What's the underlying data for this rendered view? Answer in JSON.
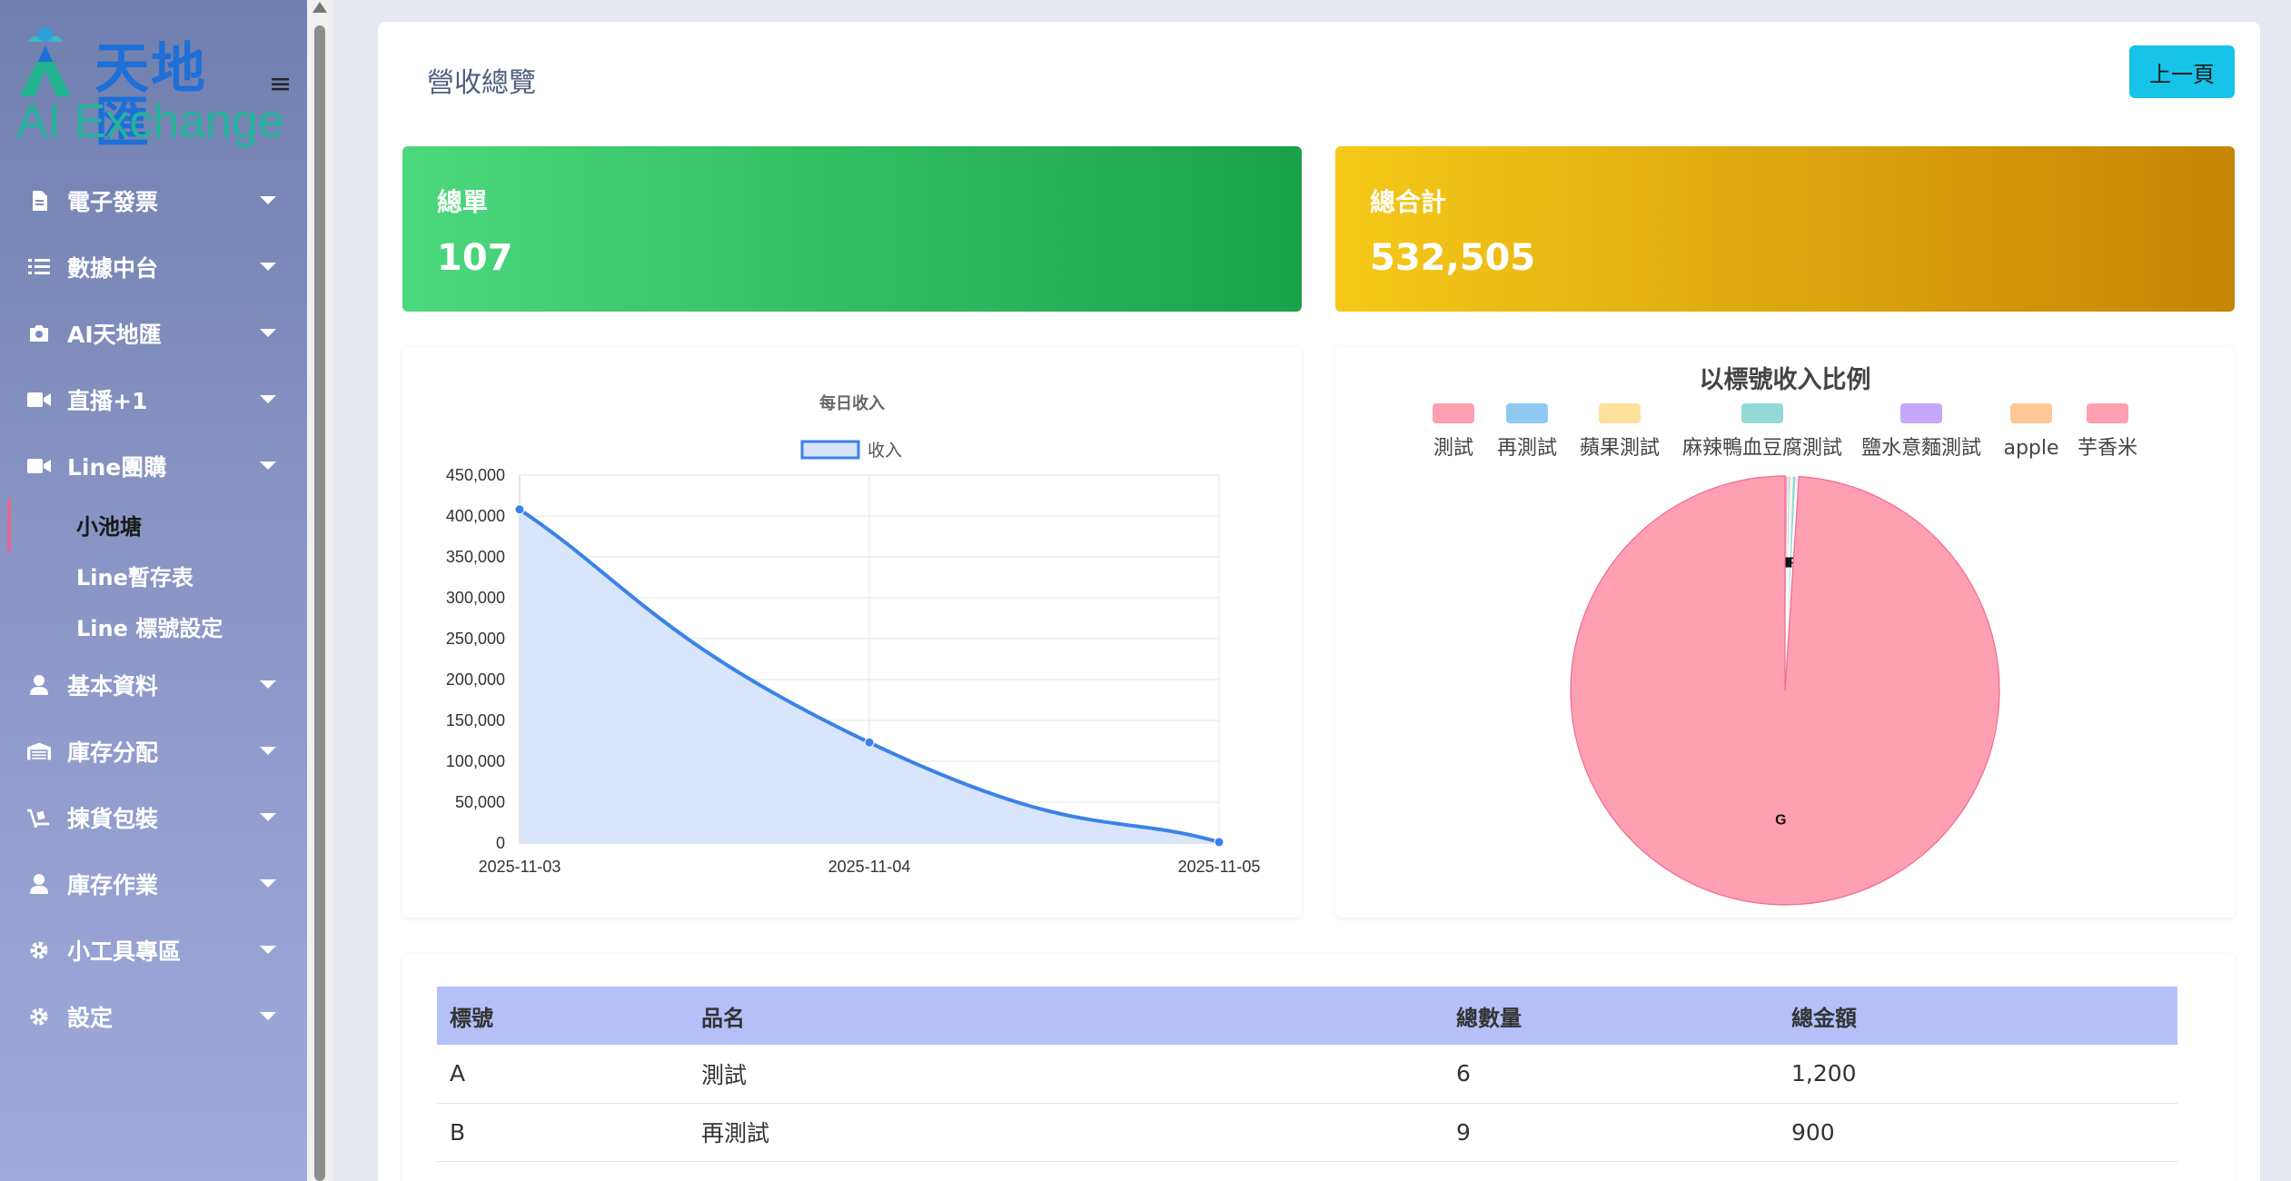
{
  "brand": {
    "name_cn": "天地匯",
    "name_en": "AI Exchange"
  },
  "sidebar": {
    "items": [
      {
        "label": "電子發票",
        "icon": "file-icon"
      },
      {
        "label": "數據中台",
        "icon": "list-icon"
      },
      {
        "label": "AI天地匯",
        "icon": "camera-icon"
      },
      {
        "label": "直播+1",
        "icon": "video-icon"
      },
      {
        "label": "Line團購",
        "icon": "video-icon"
      },
      {
        "label": "基本資料",
        "icon": "user-icon"
      },
      {
        "label": "庫存分配",
        "icon": "warehouse-icon"
      },
      {
        "label": "揀貨包裝",
        "icon": "dolly-icon"
      },
      {
        "label": "庫存作業",
        "icon": "user-icon"
      },
      {
        "label": "小工具專區",
        "icon": "gear-icon"
      },
      {
        "label": "設定",
        "icon": "gear-icon"
      }
    ],
    "subitems": [
      {
        "label": "小池塘",
        "active": true
      },
      {
        "label": "Line暫存表",
        "active": false
      },
      {
        "label": "Line 標號設定",
        "active": false
      }
    ]
  },
  "page": {
    "title": "營收總覽",
    "back_button": "上一頁"
  },
  "stats": {
    "total_orders_label": "總單",
    "total_orders_value": "107",
    "grand_total_label": "總合計",
    "grand_total_value": "532,505"
  },
  "colors": {
    "line": "#3b82e8",
    "line_fill": "#d6e4fb",
    "green_start": "#4cd87c",
    "gold_start": "#f5c918",
    "accent": "#17c3e8",
    "table_header": "#b5c0f9"
  },
  "chart_data": [
    {
      "type": "line",
      "title": "每日收入",
      "legend": "收入",
      "x": [
        "2025-11-03",
        "2025-11-04",
        "2025-11-05"
      ],
      "series": [
        {
          "name": "收入",
          "values": [
            408000,
            123000,
            1200
          ]
        }
      ],
      "ylim": [
        0,
        450000
      ],
      "yticks": [
        "450,000",
        "400,000",
        "350,000",
        "300,000",
        "250,000",
        "200,000",
        "150,000",
        "100,000",
        "50,000",
        "0"
      ],
      "fill": true,
      "grid": true
    },
    {
      "type": "pie",
      "title": "以標號收入比例",
      "categories": [
        "測試",
        "再測試",
        "蘋果測試",
        "麻辣鴨血豆腐測試",
        "鹽水意麵測試",
        "apple",
        "芋香米"
      ],
      "colors": [
        "#ff9fb2",
        "#8fc9f2",
        "#ffe09a",
        "#93dad6",
        "#c6a8fa",
        "#ffc896",
        "#ff9fb2"
      ],
      "values": [
        1200,
        900,
        800,
        1500,
        600,
        500,
        527005
      ],
      "slice_labels": [
        "A",
        "B",
        "C",
        "D",
        "E",
        "F",
        "G"
      ]
    }
  ],
  "table": {
    "headers": [
      "標號",
      "品名",
      "總數量",
      "總金額"
    ],
    "rows": [
      [
        "A",
        "測試",
        "6",
        "1,200"
      ],
      [
        "B",
        "再測試",
        "9",
        "900"
      ]
    ]
  }
}
